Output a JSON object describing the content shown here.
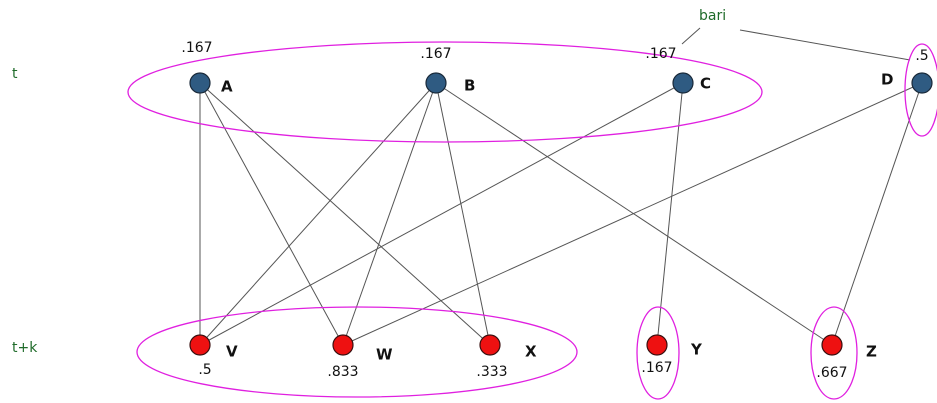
{
  "row_labels": [
    "t",
    "t+k"
  ],
  "annotation": "bari",
  "top_nodes": [
    {
      "label": "A",
      "value": ".167"
    },
    {
      "label": "B",
      "value": ".167"
    },
    {
      "label": "C",
      "value": ".167"
    },
    {
      "label": "D",
      "value": ".5"
    }
  ],
  "bottom_nodes": [
    {
      "label": "V",
      "value": ".5"
    },
    {
      "label": "W",
      "value": ".833"
    },
    {
      "label": "X",
      "value": ".333"
    },
    {
      "label": "Y",
      "value": ".167"
    },
    {
      "label": "Z",
      "value": ".667"
    }
  ]
}
